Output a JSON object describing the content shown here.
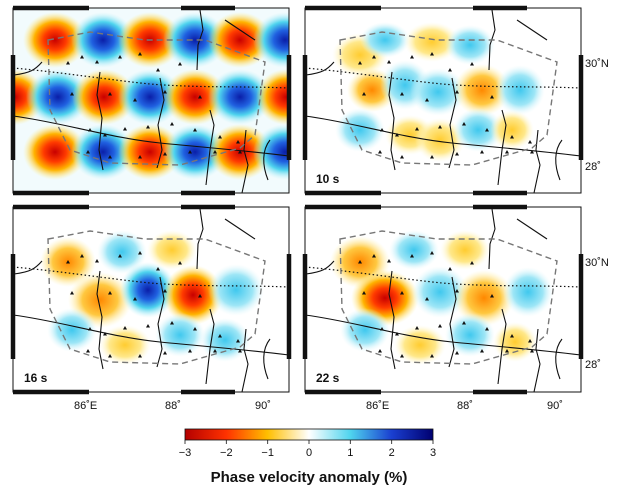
{
  "figure": {
    "colorbar": {
      "ticks": [
        "−3",
        "−2",
        "−1",
        "0",
        "1",
        "2",
        "3"
      ],
      "title": "Phase velocity anomaly (%)",
      "range": [
        -3,
        3
      ],
      "colors": [
        "#b40000",
        "#ff3200",
        "#ffbf00",
        "#ffffff",
        "#4fd4ee",
        "#1a3fd0",
        "#000070"
      ]
    },
    "panels": [
      {
        "id": "checkerboard",
        "label": "",
        "pattern": "checkerboard"
      },
      {
        "id": "p10",
        "label": "10 s",
        "pattern": "smooth"
      },
      {
        "id": "p16",
        "label": "16 s",
        "pattern": "smooth"
      },
      {
        "id": "p22",
        "label": "22 s",
        "pattern": "smooth"
      }
    ],
    "lon_labels": [
      "86˚E",
      "88˚",
      "90˚"
    ],
    "lat_labels": [
      "30˚N",
      "28˚"
    ]
  }
}
